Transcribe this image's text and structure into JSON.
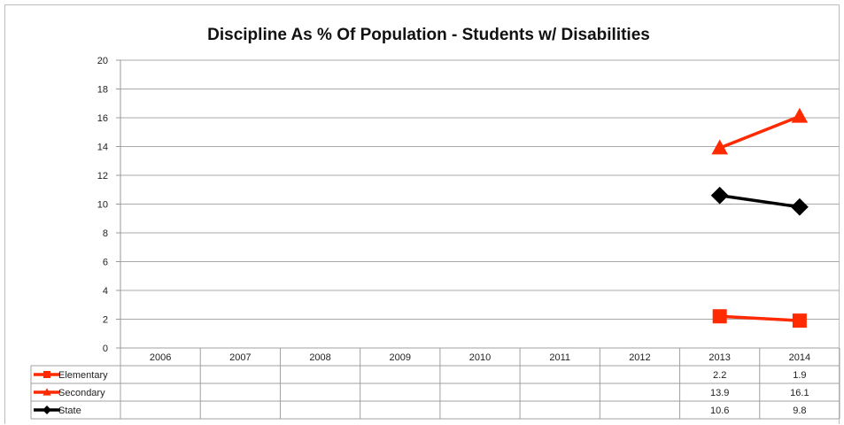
{
  "chart_data": {
    "type": "line",
    "title": "Discipline As % Of Population - Students w/ Disabilities",
    "categories": [
      "2006",
      "2007",
      "2008",
      "2009",
      "2010",
      "2011",
      "2012",
      "2013",
      "2014"
    ],
    "ylim": [
      0,
      20
    ],
    "yticks": [
      "0",
      "2",
      "4",
      "6",
      "8",
      "10",
      "12",
      "14",
      "16",
      "18",
      "20"
    ],
    "grid": true,
    "legend": "data-table",
    "series": [
      {
        "name": "Elementary",
        "color": "#ff2a00",
        "marker": "square",
        "values": [
          null,
          null,
          null,
          null,
          null,
          null,
          null,
          2.2,
          1.9
        ],
        "labels": [
          "",
          "",
          "",
          "",
          "",
          "",
          "",
          "2.2",
          "1.9"
        ]
      },
      {
        "name": "Secondary",
        "color": "#ff2a00",
        "marker": "triangle",
        "values": [
          null,
          null,
          null,
          null,
          null,
          null,
          null,
          13.9,
          16.1
        ],
        "labels": [
          "",
          "",
          "",
          "",
          "",
          "",
          "",
          "13.9",
          "16.1"
        ]
      },
      {
        "name": "State",
        "color": "#000000",
        "marker": "diamond",
        "values": [
          null,
          null,
          null,
          null,
          null,
          null,
          null,
          10.6,
          9.8
        ],
        "labels": [
          "",
          "",
          "",
          "",
          "",
          "",
          "",
          "10.6",
          "9.8"
        ]
      }
    ]
  }
}
